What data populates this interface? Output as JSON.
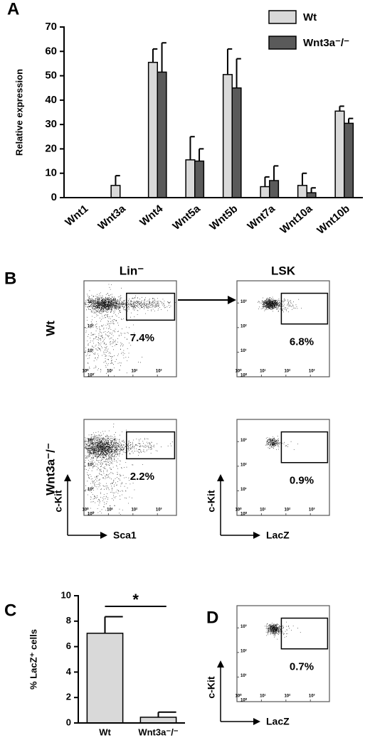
{
  "panel_labels": [
    "A",
    "B",
    "C",
    "D"
  ],
  "panel_b": {
    "columns": [
      "Lin⁻",
      "LSK"
    ],
    "rows": [
      "Wt",
      "Wnt3a⁻/⁻"
    ]
  },
  "chart_data": [
    {
      "type": "bar",
      "ylabel": "Relative expression",
      "categories": [
        "Wnt1",
        "Wnt3a",
        "Wnt4",
        "Wnt5a",
        "Wnt5b",
        "Wnt7a",
        "Wnt10a",
        "Wnt10b"
      ],
      "series": [
        {
          "name": "Wt",
          "color": "#d9d9d9",
          "values": [
            0,
            5,
            55.5,
            15.5,
            50.5,
            4.5,
            5,
            35.5
          ],
          "errors": [
            0,
            4,
            5.5,
            9.5,
            10.5,
            4,
            5,
            2
          ]
        },
        {
          "name": "Wnt3a⁻/⁻",
          "color": "#5a5a5a",
          "values": [
            0,
            0,
            51.5,
            15,
            45,
            7,
            2,
            30.5
          ],
          "errors": [
            0,
            0,
            12,
            5,
            12,
            6,
            2,
            2
          ]
        }
      ],
      "ylim": [
        0,
        70
      ],
      "yticks": [
        0,
        10,
        20,
        30,
        40,
        50,
        60,
        70
      ]
    },
    {
      "type": "flow",
      "log": true,
      "gate_label": "7.4%",
      "xlim": [
        1,
        6000
      ],
      "ylim": [
        1,
        8000
      ],
      "xticks": [
        {
          "value": 1,
          "label": "10⁰"
        },
        {
          "value": 10,
          "label": "10¹"
        },
        {
          "value": 100,
          "label": "10²"
        },
        {
          "value": 1000,
          "label": "10³"
        }
      ],
      "yticks": [
        {
          "value": 1,
          "label": "10⁰"
        },
        {
          "value": 10,
          "label": "10¹"
        },
        {
          "value": 100,
          "label": "10²"
        },
        {
          "value": 1000,
          "label": "10³"
        }
      ]
    },
    {
      "type": "flow",
      "log": true,
      "gate_label": "6.8%",
      "xlim": [
        1,
        6000
      ],
      "ylim": [
        1,
        8000
      ],
      "xticks": [
        {
          "value": 1,
          "label": "10⁰"
        },
        {
          "value": 10,
          "label": "10¹"
        },
        {
          "value": 100,
          "label": "10²"
        },
        {
          "value": 1000,
          "label": "10³"
        }
      ],
      "yticks": [
        {
          "value": 1,
          "label": "10⁰"
        },
        {
          "value": 10,
          "label": "10¹"
        },
        {
          "value": 100,
          "label": "10²"
        },
        {
          "value": 1000,
          "label": "10³"
        }
      ]
    },
    {
      "type": "flow",
      "log": true,
      "gate_label": "2.2%",
      "xlabel": "Sca1",
      "ylabel": "c-Kit",
      "xlim": [
        1,
        6000
      ],
      "ylim": [
        1,
        8000
      ],
      "xticks": [
        {
          "value": 1,
          "label": "10⁰"
        },
        {
          "value": 10,
          "label": "10¹"
        },
        {
          "value": 100,
          "label": "10²"
        },
        {
          "value": 1000,
          "label": "10³"
        }
      ],
      "yticks": [
        {
          "value": 1,
          "label": "10⁰"
        },
        {
          "value": 10,
          "label": "10¹"
        },
        {
          "value": 100,
          "label": "10²"
        },
        {
          "value": 1000,
          "label": "10³"
        }
      ]
    },
    {
      "type": "flow",
      "log": true,
      "gate_label": "0.9%",
      "xlabel": "LacZ",
      "ylabel": "c-Kit",
      "xlim": [
        1,
        6000
      ],
      "ylim": [
        1,
        8000
      ],
      "xticks": [
        {
          "value": 1,
          "label": "10⁰"
        },
        {
          "value": 10,
          "label": "10¹"
        },
        {
          "value": 100,
          "label": "10²"
        },
        {
          "value": 1000,
          "label": "10³"
        }
      ],
      "yticks": [
        {
          "value": 1,
          "label": "10⁰"
        },
        {
          "value": 10,
          "label": "10¹"
        },
        {
          "value": 100,
          "label": "10²"
        },
        {
          "value": 1000,
          "label": "10³"
        }
      ]
    },
    {
      "type": "bar",
      "ylabel": "% LacZ⁺ cells",
      "annotation": "*",
      "categories": [
        "Wt",
        "Wnt3a⁻/⁻"
      ],
      "values": [
        7.05,
        0.45
      ],
      "errors": [
        1.3,
        0.4
      ],
      "color": "#d9d9d9",
      "ylim": [
        0,
        10
      ],
      "yticks": [
        0,
        2,
        4,
        6,
        8,
        10
      ]
    },
    {
      "type": "flow",
      "log": true,
      "gate_label": "0.7%",
      "xlabel": "LacZ",
      "ylabel": "c-Kit",
      "xlim": [
        1,
        6000
      ],
      "ylim": [
        1,
        8000
      ],
      "xticks": [
        {
          "value": 1,
          "label": "10⁰"
        },
        {
          "value": 10,
          "label": "10¹"
        },
        {
          "value": 100,
          "label": "10²"
        },
        {
          "value": 1000,
          "label": "10³"
        }
      ],
      "yticks": [
        {
          "value": 1,
          "label": "10⁰"
        },
        {
          "value": 10,
          "label": "10¹"
        },
        {
          "value": 100,
          "label": "10²"
        },
        {
          "value": 1000,
          "label": "10³"
        }
      ]
    }
  ]
}
